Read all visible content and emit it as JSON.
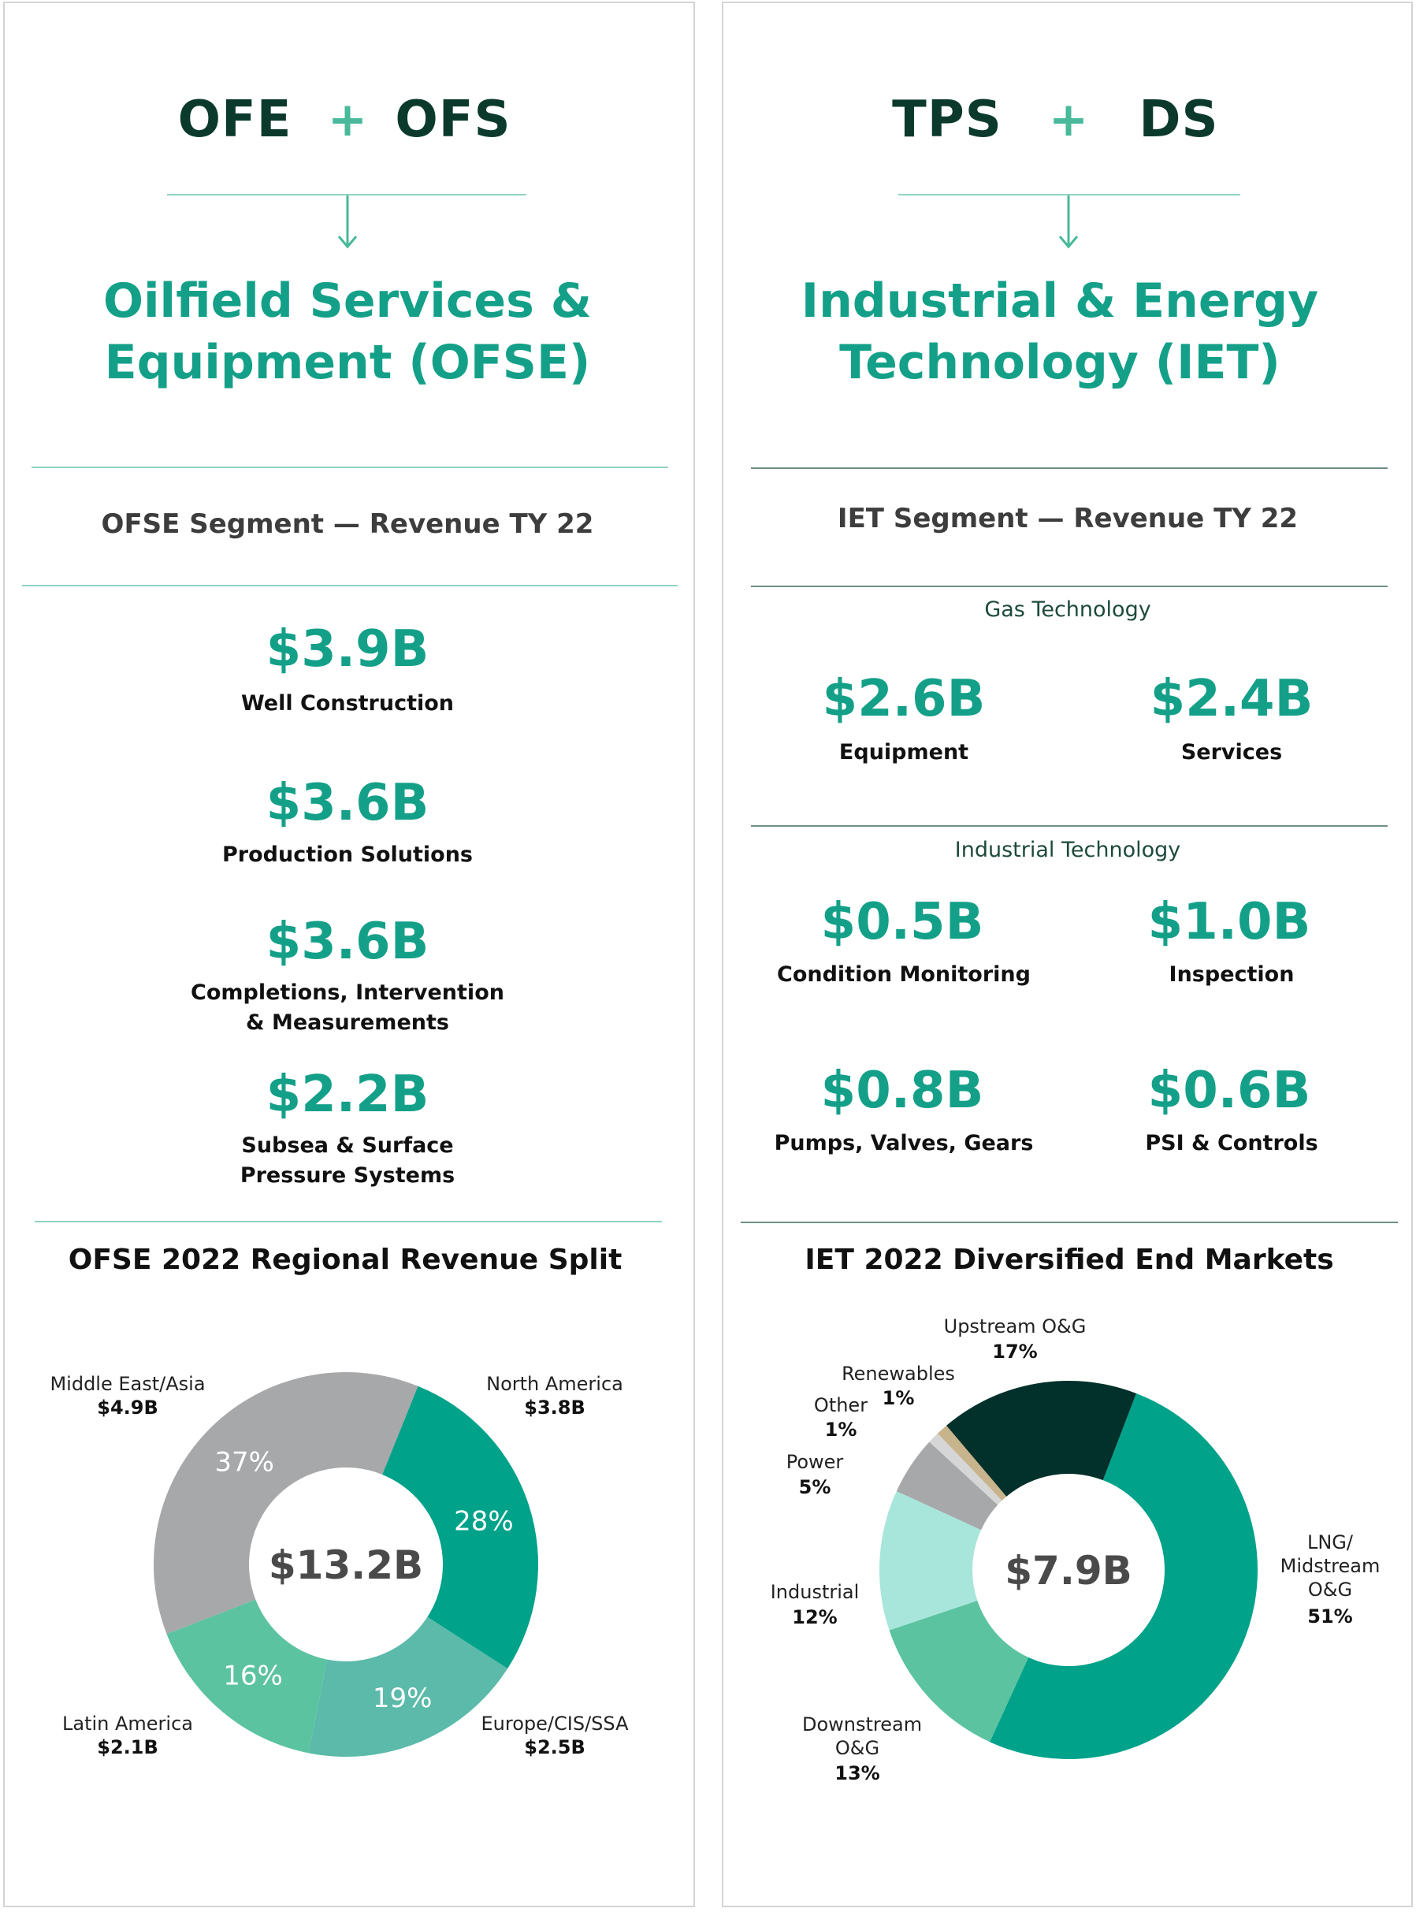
{
  "left": {
    "combo": {
      "a": "OFE",
      "plus": "+",
      "b": "OFS"
    },
    "title_line1": "Oilfield Services &",
    "title_line2": "Equipment (OFSE)",
    "segment_title": "OFSE Segment — Revenue TY 22",
    "items": [
      {
        "value": "$3.9B",
        "label1": "Well Construction",
        "label2": ""
      },
      {
        "value": "$3.6B",
        "label1": "Production Solutions",
        "label2": ""
      },
      {
        "value": "$3.6B",
        "label1": "Completions, Intervention",
        "label2": "& Measurements"
      },
      {
        "value": "$2.2B",
        "label1": "Subsea & Surface",
        "label2": "Pressure Systems"
      }
    ]
  },
  "right": {
    "combo": {
      "a": "TPS",
      "plus": "+",
      "b": "DS"
    },
    "title_line1": "Industrial & Energy",
    "title_line2": "Technology (IET)",
    "segment_title": "IET Segment — Revenue TY 22",
    "gas_title": "Gas Technology",
    "gas_items": [
      {
        "value": "$2.6B",
        "label": "Equipment"
      },
      {
        "value": "$2.4B",
        "label": "Services"
      }
    ],
    "ind_title": "Industrial Technology",
    "ind_items": [
      {
        "value": "$0.5B",
        "label": "Condition Monitoring"
      },
      {
        "value": "$1.0B",
        "label": "Inspection"
      },
      {
        "value": "$0.8B",
        "label": "Pumps, Valves, Gears"
      },
      {
        "value": "$0.6B",
        "label": "PSI & Controls"
      }
    ]
  },
  "chart_data": [
    {
      "type": "pie",
      "title": "OFSE 2022 Regional Revenue Split",
      "center_label": "$13.2B",
      "slices": [
        {
          "name": "North America",
          "amount": "$3.8B",
          "percent": 28,
          "pct_label": "28%",
          "color": "#00a28a"
        },
        {
          "name": "Europe/CIS/SSA",
          "amount": "$2.5B",
          "percent": 19,
          "pct_label": "19%",
          "color": "#5bbaa9"
        },
        {
          "name": "Latin America",
          "amount": "$2.1B",
          "percent": 16,
          "pct_label": "16%",
          "color": "#5cc3a0"
        },
        {
          "name": "Middle East/Asia",
          "amount": "$4.9B",
          "percent": 37,
          "pct_label": "37%",
          "color": "#a7a8aa"
        }
      ]
    },
    {
      "type": "pie",
      "title": "IET 2022 Diversified End Markets",
      "center_label": "$7.9B",
      "slices": [
        {
          "name": "LNG/ Midstream O&G",
          "percent": 51,
          "pct_label": "51%",
          "color": "#00a28a"
        },
        {
          "name": "Downstream O&G",
          "percent": 13,
          "pct_label": "13%",
          "color": "#5cc3a0"
        },
        {
          "name": "Industrial",
          "percent": 12,
          "pct_label": "12%",
          "color": "#a8e6db"
        },
        {
          "name": "Power",
          "percent": 5,
          "pct_label": "5%",
          "color": "#a7a8aa"
        },
        {
          "name": "Other",
          "percent": 1,
          "pct_label": "1%",
          "color": "#d6d6d6"
        },
        {
          "name": "Renewables",
          "percent": 1,
          "pct_label": "1%",
          "color": "#c8b48c"
        },
        {
          "name": "Upstream O&G",
          "percent": 17,
          "pct_label": "17%",
          "color": "#02302a"
        }
      ]
    }
  ]
}
